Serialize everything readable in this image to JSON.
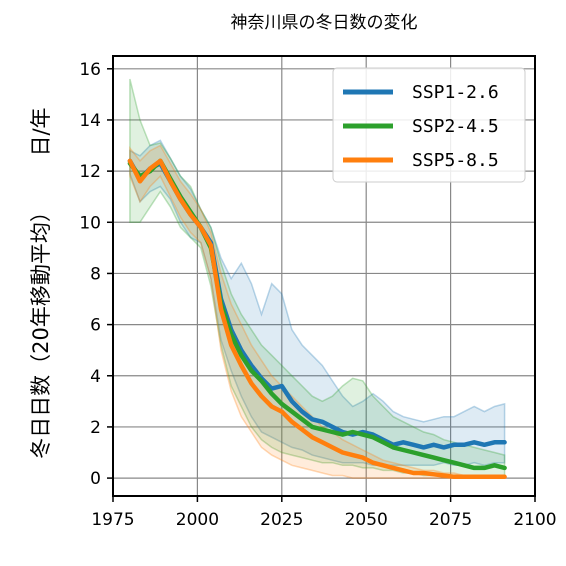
{
  "chart_data": {
    "type": "line",
    "title": "神奈川県の冬日数の変化",
    "ylabel_unit": "日/年",
    "ylabel": "冬日日数（20年移動平均）",
    "xlim": [
      1975,
      2100
    ],
    "ylim": [
      -0.7,
      16.5
    ],
    "xticks": [
      "1975",
      "2000",
      "2025",
      "2050",
      "2075",
      "2100"
    ],
    "yticks": [
      "0",
      "2",
      "4",
      "6",
      "8",
      "10",
      "12",
      "14",
      "16"
    ],
    "xtick_values": [
      1975,
      2000,
      2025,
      2050,
      2075,
      2100
    ],
    "ytick_values": [
      0,
      2,
      4,
      6,
      8,
      10,
      12,
      14,
      16
    ],
    "grid": true,
    "legend_position": "top-right",
    "colors": {
      "ssp126": "#1f77b4",
      "ssp245": "#2ca02c",
      "ssp585": "#ff7f0e"
    },
    "series": [
      {
        "name": "SSP1-2.6",
        "color": "#1f77b4",
        "x": [
          1980,
          1983,
          1986,
          1989,
          1992,
          1995,
          1998,
          2001,
          2004,
          2007,
          2010,
          2013,
          2016,
          2019,
          2022,
          2025,
          2028,
          2031,
          2034,
          2037,
          2040,
          2043,
          2046,
          2049,
          2052,
          2055,
          2058,
          2061,
          2064,
          2067,
          2070,
          2073,
          2076,
          2079,
          2082,
          2085,
          2088,
          2091
        ],
        "y": [
          12.4,
          11.7,
          12.1,
          12.3,
          11.6,
          10.9,
          10.3,
          9.8,
          9.2,
          7.0,
          5.8,
          5.0,
          4.4,
          3.9,
          3.5,
          3.6,
          3.0,
          2.6,
          2.3,
          2.2,
          2.0,
          1.8,
          1.7,
          1.8,
          1.7,
          1.5,
          1.3,
          1.4,
          1.3,
          1.2,
          1.3,
          1.2,
          1.3,
          1.3,
          1.4,
          1.3,
          1.4,
          1.4
        ],
        "lower": [
          11.9,
          10.8,
          11.2,
          11.4,
          10.9,
          10.0,
          9.4,
          9.2,
          7.8,
          5.4,
          4.2,
          3.2,
          2.4,
          1.8,
          1.6,
          1.4,
          1.2,
          1.1,
          0.9,
          0.8,
          0.7,
          0.6,
          0.6,
          0.6,
          0.5,
          0.5,
          0.5,
          0.5,
          0.5,
          0.5,
          0.5,
          0.6,
          0.5,
          0.5,
          0.6,
          0.5,
          0.6,
          0.6
        ],
        "upper": [
          12.8,
          12.6,
          13.0,
          13.2,
          12.5,
          11.8,
          11.3,
          10.5,
          9.8,
          8.6,
          7.8,
          8.4,
          7.6,
          6.4,
          7.6,
          7.2,
          5.8,
          5.2,
          4.8,
          4.4,
          3.8,
          3.2,
          2.8,
          3.0,
          3.3,
          3.0,
          2.6,
          2.4,
          2.3,
          2.2,
          2.3,
          2.4,
          2.4,
          2.6,
          2.8,
          2.6,
          2.8,
          2.9
        ]
      },
      {
        "name": "SSP2-4.5",
        "color": "#2ca02c",
        "x": [
          1980,
          1983,
          1986,
          1989,
          1992,
          1995,
          1998,
          2001,
          2004,
          2007,
          2010,
          2013,
          2016,
          2019,
          2022,
          2025,
          2028,
          2031,
          2034,
          2037,
          2040,
          2043,
          2046,
          2049,
          2052,
          2055,
          2058,
          2061,
          2064,
          2067,
          2070,
          2073,
          2076,
          2079,
          2082,
          2085,
          2088,
          2091
        ],
        "y": [
          12.3,
          11.8,
          12.0,
          12.4,
          11.7,
          11.0,
          10.4,
          9.8,
          9.0,
          6.8,
          5.6,
          4.8,
          4.2,
          3.8,
          3.3,
          2.9,
          2.6,
          2.3,
          2.0,
          1.9,
          1.8,
          1.7,
          1.8,
          1.7,
          1.6,
          1.4,
          1.2,
          1.1,
          1.0,
          0.9,
          0.8,
          0.7,
          0.6,
          0.5,
          0.4,
          0.4,
          0.5,
          0.4
        ],
        "lower": [
          10.0,
          10.0,
          10.6,
          11.2,
          10.6,
          9.8,
          9.4,
          9.0,
          7.5,
          5.2,
          3.6,
          2.8,
          2.0,
          1.5,
          1.2,
          1.0,
          0.9,
          0.8,
          0.7,
          0.6,
          0.6,
          0.5,
          0.5,
          0.4,
          0.4,
          0.3,
          0.3,
          0.2,
          0.2,
          0.1,
          0.1,
          0.1,
          0.1,
          0.0,
          0.0,
          0.0,
          0.0,
          0.0
        ],
        "upper": [
          15.6,
          14.0,
          13.0,
          13.1,
          12.5,
          11.8,
          11.4,
          10.5,
          9.8,
          8.4,
          7.2,
          6.4,
          5.8,
          5.2,
          4.8,
          4.4,
          4.0,
          3.6,
          3.2,
          3.0,
          3.2,
          3.6,
          3.9,
          3.8,
          3.2,
          2.8,
          2.4,
          2.2,
          2.0,
          1.8,
          1.7,
          1.5,
          1.4,
          1.3,
          1.2,
          1.1,
          1.0,
          0.9
        ]
      },
      {
        "name": "SSP5-8.5",
        "color": "#ff7f0e",
        "x": [
          1980,
          1983,
          1986,
          1989,
          1992,
          1995,
          1998,
          2001,
          2004,
          2007,
          2010,
          2013,
          2016,
          2019,
          2022,
          2025,
          2028,
          2031,
          2034,
          2037,
          2040,
          2043,
          2046,
          2049,
          2052,
          2055,
          2058,
          2061,
          2064,
          2067,
          2070,
          2073,
          2076,
          2079,
          2082,
          2085,
          2088,
          2091
        ],
        "y": [
          12.4,
          11.6,
          12.1,
          12.4,
          11.6,
          10.9,
          10.3,
          9.8,
          9.1,
          6.6,
          5.2,
          4.4,
          3.7,
          3.2,
          2.8,
          2.6,
          2.2,
          1.9,
          1.6,
          1.4,
          1.2,
          1.0,
          0.9,
          0.8,
          0.6,
          0.5,
          0.4,
          0.3,
          0.2,
          0.2,
          0.15,
          0.1,
          0.05,
          0.05,
          0.05,
          0.05,
          0.05,
          0.05
        ],
        "lower": [
          11.8,
          10.8,
          11.4,
          11.8,
          11.0,
          10.2,
          9.6,
          9.2,
          7.8,
          5.0,
          3.4,
          2.4,
          1.8,
          1.2,
          0.9,
          0.7,
          0.5,
          0.4,
          0.3,
          0.2,
          0.1,
          0.1,
          0.0,
          0.0,
          0.0,
          0.0,
          0.0,
          0.0,
          0.0,
          0.0,
          0.0,
          0.0,
          0.0,
          0.0,
          0.0,
          0.0,
          0.0,
          0.0
        ],
        "upper": [
          12.9,
          12.4,
          12.8,
          13.0,
          12.3,
          11.6,
          11.1,
          10.5,
          9.6,
          8.0,
          6.8,
          6.0,
          5.2,
          4.6,
          4.0,
          3.6,
          3.2,
          2.8,
          2.4,
          2.0,
          1.8,
          1.5,
          1.3,
          1.1,
          0.9,
          0.7,
          0.6,
          0.5,
          0.4,
          0.3,
          0.3,
          0.2,
          0.2,
          0.1,
          0.1,
          0.1,
          0.1,
          0.1
        ]
      }
    ]
  }
}
